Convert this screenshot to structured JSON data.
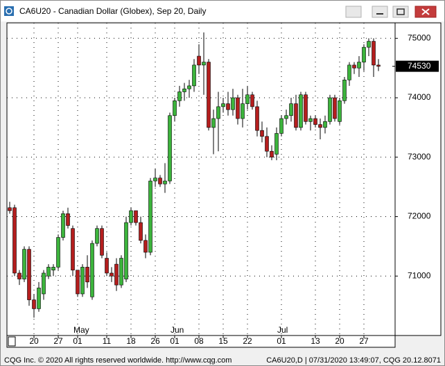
{
  "window_title": "CA6U20 - Canadian Dollar (Globex), Sep 20, Daily",
  "chart_data": {
    "type": "candlestick",
    "categories": [
      null,
      null,
      null,
      null,
      null,
      "20",
      null,
      null,
      null,
      null,
      "27",
      null,
      null,
      null,
      "01",
      null,
      null,
      null,
      null,
      null,
      "11",
      null,
      null,
      null,
      null,
      "18",
      null,
      null,
      null,
      null,
      "26",
      null,
      null,
      null,
      "01",
      null,
      null,
      null,
      null,
      "08",
      null,
      null,
      null,
      null,
      "15",
      null,
      null,
      null,
      null,
      "22",
      null,
      null,
      null,
      null,
      null,
      null,
      "01",
      null,
      null,
      null,
      null,
      null,
      null,
      "13",
      null,
      null,
      null,
      null,
      "20",
      null,
      null,
      null,
      null,
      "27",
      null,
      null,
      null
    ],
    "month_labels": [
      null,
      null,
      null,
      null,
      null,
      null,
      null,
      null,
      null,
      null,
      null,
      null,
      null,
      null,
      "May",
      null,
      null,
      null,
      null,
      null,
      null,
      null,
      null,
      null,
      null,
      null,
      null,
      null,
      null,
      null,
      null,
      null,
      null,
      null,
      "Jun",
      null,
      null,
      null,
      null,
      null,
      null,
      null,
      null,
      null,
      null,
      null,
      null,
      null,
      null,
      null,
      null,
      null,
      null,
      null,
      null,
      null,
      "Jul",
      null,
      null,
      null,
      null,
      null,
      null,
      null,
      null,
      null,
      null,
      null,
      null,
      null,
      null,
      null,
      null,
      null,
      null,
      null,
      null
    ],
    "open": [
      72150,
      72150,
      71050,
      70950,
      71450,
      70600,
      70450,
      70700,
      71000,
      71100,
      71150,
      71650,
      72050,
      71800,
      71100,
      70700,
      71150,
      70650,
      71550,
      71800,
      71300,
      71050,
      71200,
      70850,
      70950,
      71900,
      72100,
      71900,
      71600,
      71400,
      72600,
      72650,
      72550,
      72600,
      73700,
      73950,
      74100,
      74150,
      74200,
      74700,
      74550,
      74600,
      73500,
      73650,
      73850,
      73900,
      73800,
      74000,
      73650,
      73900,
      74050,
      73850,
      73450,
      73350,
      73100,
      73050,
      73400,
      73650,
      73700,
      73900,
      73500,
      74050,
      73600,
      73650,
      73550,
      73500,
      73600,
      74000,
      73600,
      73950,
      74300,
      74550,
      74500,
      74600,
      74850,
      74950,
      74550
    ],
    "high": [
      72250,
      72200,
      71100,
      71500,
      71500,
      70700,
      70900,
      71100,
      71200,
      71200,
      71700,
      72100,
      72150,
      71850,
      71100,
      71200,
      71350,
      71600,
      71850,
      71850,
      71400,
      71150,
      71300,
      71350,
      72000,
      72150,
      72100,
      72000,
      71700,
      72650,
      72800,
      72700,
      72900,
      73750,
      74000,
      74200,
      74250,
      74300,
      74650,
      74900,
      75100,
      74650,
      73800,
      74100,
      74000,
      74100,
      74150,
      74050,
      74150,
      74200,
      74100,
      73950,
      73600,
      73500,
      73200,
      73500,
      73700,
      73800,
      74000,
      74050,
      74100,
      74100,
      73700,
      73700,
      73650,
      73700,
      74050,
      74050,
      74000,
      74350,
      74600,
      74600,
      74700,
      74900,
      75000,
      75000,
      74650
    ],
    "low": [
      72050,
      71000,
      70850,
      70900,
      70500,
      70300,
      70400,
      70600,
      70950,
      71000,
      71100,
      71600,
      71800,
      71000,
      70650,
      70650,
      70800,
      70600,
      71500,
      71300,
      71000,
      70900,
      70750,
      70800,
      70900,
      71850,
      71850,
      71550,
      71300,
      71350,
      72500,
      72500,
      72400,
      72550,
      73600,
      73850,
      73950,
      74000,
      74100,
      74400,
      74050,
      73450,
      73050,
      73100,
      73750,
      73700,
      73700,
      73550,
      73500,
      73800,
      73800,
      73350,
      73250,
      73000,
      72950,
      72950,
      73350,
      73550,
      73600,
      73450,
      73450,
      73550,
      73450,
      73500,
      73300,
      73400,
      73550,
      73600,
      73550,
      73900,
      74200,
      74400,
      74350,
      74450,
      74700,
      74350,
      74450
    ],
    "close": [
      72100,
      71050,
      70950,
      71450,
      70600,
      70450,
      70800,
      71050,
      71150,
      71150,
      71650,
      72050,
      71850,
      71100,
      70700,
      71150,
      70900,
      71550,
      71800,
      71350,
      71050,
      71000,
      70850,
      71300,
      71900,
      72100,
      71900,
      71600,
      71400,
      72600,
      72650,
      72550,
      72600,
      73700,
      73950,
      74100,
      74150,
      74200,
      74550,
      74550,
      74600,
      73500,
      73650,
      73850,
      73900,
      73800,
      74000,
      73650,
      73900,
      74050,
      73850,
      73450,
      73350,
      73100,
      73000,
      73400,
      73650,
      73700,
      73900,
      73500,
      74050,
      73600,
      73650,
      73550,
      73500,
      73600,
      74000,
      73650,
      73950,
      74300,
      74550,
      74500,
      74600,
      74850,
      74950,
      74550,
      74530
    ],
    "up_color": "#3cb43c",
    "down_color": "#b41e1e",
    "ylim": [
      70000,
      75260
    ],
    "yticks": [
      71000,
      72000,
      73000,
      74000,
      75000
    ],
    "grid": true,
    "last_price": 74530
  },
  "footer": {
    "left": "CQG Inc. © 2020 All rights reserved worldwide. http://www.cqg.com",
    "right": "CA6U20,D | 07/31/2020 13:49:07, CQG 20.12.8071"
  }
}
